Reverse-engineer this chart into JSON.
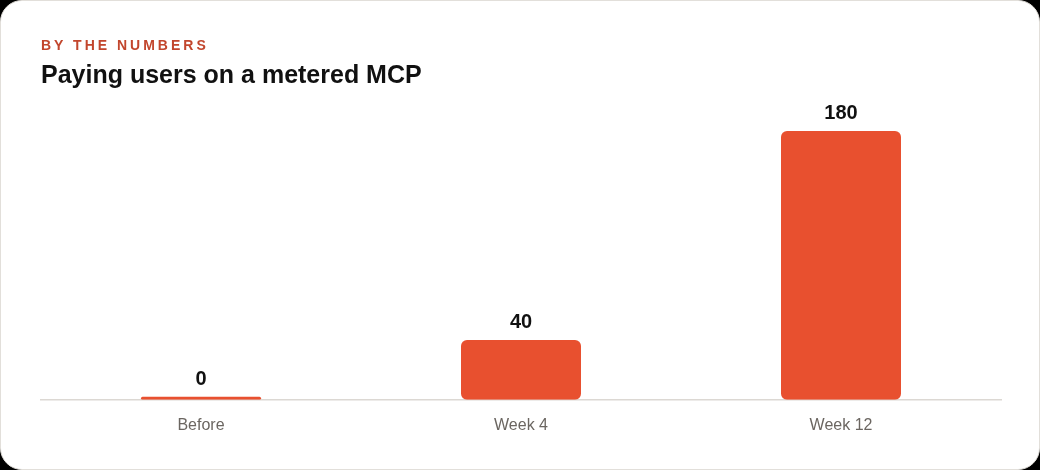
{
  "chart_data": {
    "type": "bar",
    "subtitle": "BY THE NUMBERS",
    "title": "Paying users on a metered MCP",
    "categories": [
      "Before",
      "Week 4",
      "Week 12"
    ],
    "values": [
      0,
      40,
      180
    ],
    "color": "#e8502f",
    "data_labels": true,
    "tick_labels": "x"
  }
}
